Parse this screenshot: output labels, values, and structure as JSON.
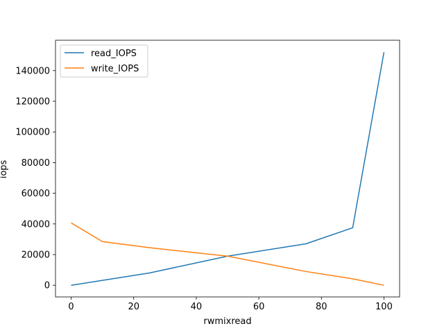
{
  "chart_data": {
    "type": "line",
    "title": "",
    "xlabel": "rwmixread",
    "ylabel": "iops",
    "xlim": [
      -5,
      105
    ],
    "ylim": [
      -7600,
      159800
    ],
    "x_ticks": [
      0,
      20,
      40,
      60,
      80,
      100
    ],
    "y_ticks": [
      0,
      20000,
      40000,
      60000,
      80000,
      100000,
      120000,
      140000
    ],
    "grid": false,
    "legend_position": "upper-left",
    "series": [
      {
        "name": "read_IOPS",
        "color": "#1f77b4",
        "x": [
          0,
          10,
          25,
          50,
          75,
          90,
          100
        ],
        "y": [
          0,
          3200,
          8000,
          19000,
          27000,
          37500,
          152000
        ]
      },
      {
        "name": "write_IOPS",
        "color": "#ff7f0e",
        "x": [
          0,
          10,
          25,
          50,
          75,
          90,
          100
        ],
        "y": [
          40700,
          28500,
          24500,
          19000,
          9000,
          4200,
          0
        ]
      }
    ]
  }
}
